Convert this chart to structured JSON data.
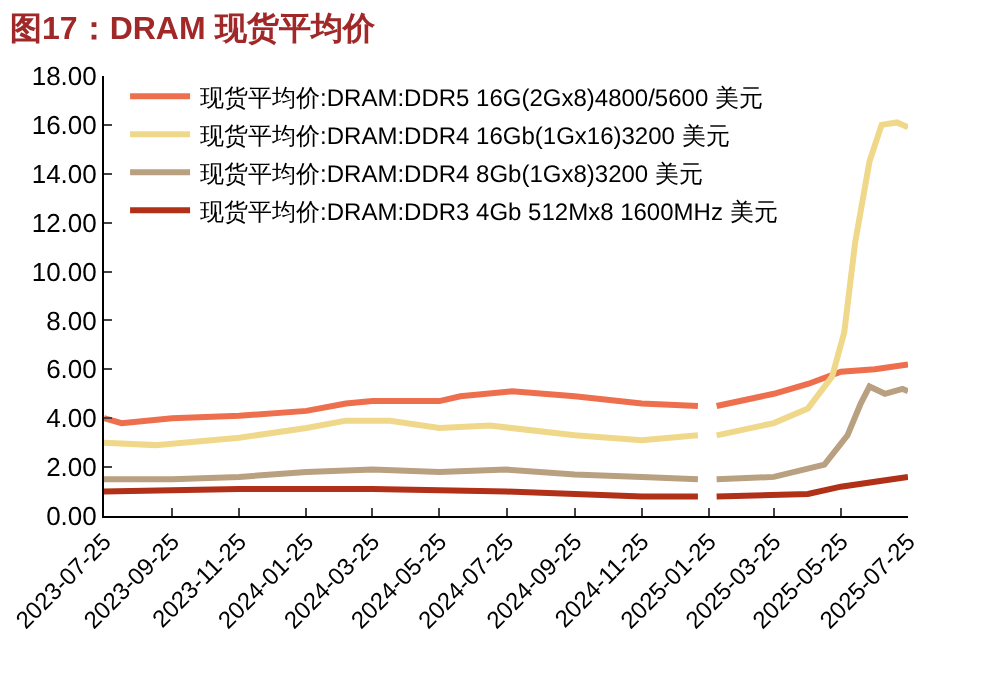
{
  "chart_data": {
    "type": "line",
    "title": "图17：DRAM 现货平均价",
    "xlim": [
      "2023-07-25",
      "2025-07-25"
    ],
    "xticks": [
      "2023-07-25",
      "2023-09-25",
      "2023-11-25",
      "2024-01-25",
      "2024-03-25",
      "2024-05-25",
      "2024-07-25",
      "2024-09-25",
      "2024-11-25",
      "2025-01-25",
      "2025-03-25",
      "2025-05-25",
      "2025-07-25"
    ],
    "ylim": [
      0,
      18
    ],
    "yticks": [
      {
        "value": 0,
        "label": "0.00"
      },
      {
        "value": 2,
        "label": "2.00"
      },
      {
        "value": 4,
        "label": "4.00"
      },
      {
        "value": 6,
        "label": "6.00"
      },
      {
        "value": 8,
        "label": "8.00"
      },
      {
        "value": 10,
        "label": "10.00"
      },
      {
        "value": 12,
        "label": "12.00"
      },
      {
        "value": 14,
        "label": "14.00"
      },
      {
        "value": 16,
        "label": "16.00"
      },
      {
        "value": 18,
        "label": "18.00"
      }
    ],
    "grid": false,
    "legend": "top left",
    "marker": "none",
    "line_style": "solid",
    "series": [
      {
        "name": "现货平均价:DRAM:DDR5 16G(2Gx8)4800/5600 美元",
        "color": "#ee6f4e",
        "x": [
          "2023-07-25",
          "2023-08-10",
          "2023-09-25",
          "2023-11-25",
          "2024-01-25",
          "2024-03-01",
          "2024-03-25",
          "2024-05-25",
          "2024-06-13",
          "2024-07-30",
          "2024-09-25",
          "2024-11-25",
          "2025-01-15",
          "2025-01-25",
          "2025-02-01",
          "2025-03-25",
          "2025-04-25",
          "2025-05-25",
          "2025-06-25",
          "2025-07-25"
        ],
        "values": [
          4.0,
          3.8,
          4.0,
          4.1,
          4.3,
          4.6,
          4.7,
          4.7,
          4.9,
          5.1,
          4.9,
          4.6,
          4.5,
          null,
          4.5,
          5.0,
          5.4,
          5.9,
          6.0,
          6.2
        ]
      },
      {
        "name": "现货平均价:DRAM:DDR4 16Gb(1Gx16)3200 美元",
        "color": "#f0d88a",
        "x": [
          "2023-07-25",
          "2023-09-10",
          "2023-11-25",
          "2024-01-25",
          "2024-03-01",
          "2024-04-10",
          "2024-05-25",
          "2024-07-10",
          "2024-09-25",
          "2024-11-25",
          "2025-01-15",
          "2025-01-25",
          "2025-02-01",
          "2025-03-25",
          "2025-04-25",
          "2025-05-17",
          "2025-05-28",
          "2025-06-07",
          "2025-06-20",
          "2025-07-01",
          "2025-07-15",
          "2025-07-25"
        ],
        "values": [
          3.0,
          2.9,
          3.2,
          3.6,
          3.9,
          3.9,
          3.6,
          3.7,
          3.3,
          3.1,
          3.3,
          null,
          3.3,
          3.8,
          4.4,
          5.7,
          7.5,
          11.2,
          14.5,
          16.0,
          16.1,
          15.9
        ]
      },
      {
        "name": "现货平均价:DRAM:DDR4 8Gb(1Gx8)3200 美元",
        "color": "#b8a080",
        "x": [
          "2023-07-25",
          "2023-09-25",
          "2023-11-25",
          "2024-01-25",
          "2024-03-25",
          "2024-05-25",
          "2024-07-25",
          "2024-09-25",
          "2024-11-25",
          "2025-01-15",
          "2025-01-25",
          "2025-02-01",
          "2025-03-25",
          "2025-05-10",
          "2025-05-31",
          "2025-06-12",
          "2025-06-20",
          "2025-07-04",
          "2025-07-20",
          "2025-07-25"
        ],
        "values": [
          1.5,
          1.5,
          1.6,
          1.8,
          1.9,
          1.8,
          1.9,
          1.7,
          1.6,
          1.5,
          null,
          1.5,
          1.6,
          2.1,
          3.3,
          4.6,
          5.3,
          5.0,
          5.2,
          5.1
        ]
      },
      {
        "name": "现货平均价:DRAM:DDR3 4Gb 512Mx8 1600MHz 美元",
        "color": "#b03018",
        "x": [
          "2023-07-25",
          "2023-11-25",
          "2024-03-25",
          "2024-07-25",
          "2024-11-25",
          "2025-01-15",
          "2025-01-25",
          "2025-02-01",
          "2025-04-25",
          "2025-05-25",
          "2025-06-25",
          "2025-07-25"
        ],
        "values": [
          1.0,
          1.1,
          1.1,
          1.0,
          0.8,
          0.8,
          null,
          0.8,
          0.9,
          1.2,
          1.4,
          1.6
        ]
      }
    ]
  }
}
